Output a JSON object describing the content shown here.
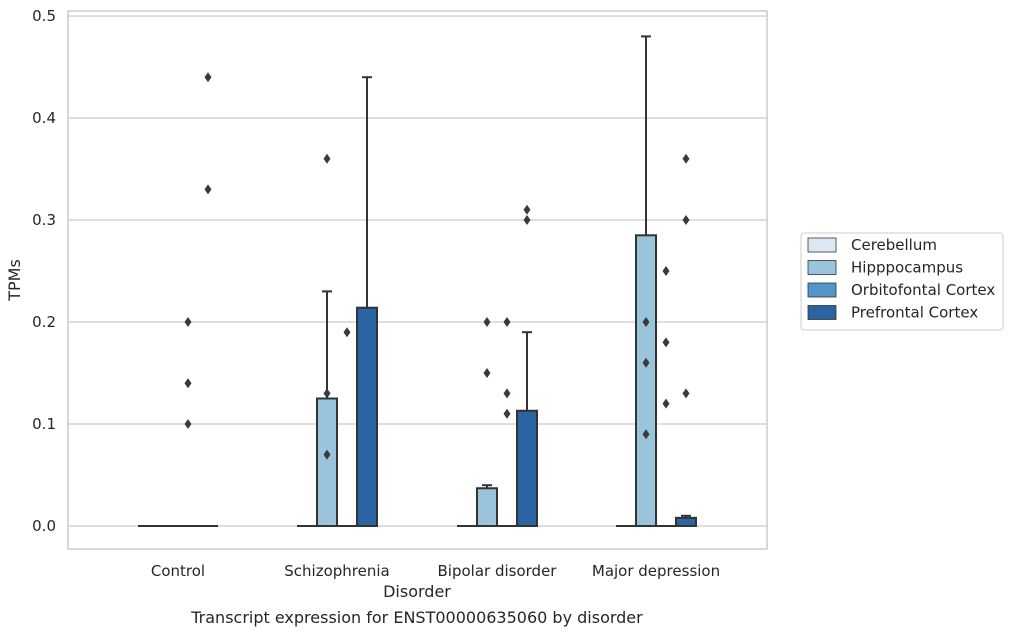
{
  "chart_data": {
    "type": "bar",
    "title": "",
    "caption": "Transcript expression for ENST00000635060 by disorder",
    "xlabel": "Disorder",
    "ylabel": "TPMs",
    "ylim": [
      -0.024,
      0.505
    ],
    "yticks": [
      0.0,
      0.1,
      0.2,
      0.3,
      0.4,
      0.5
    ],
    "ytick_labels": [
      "0.0",
      "0.1",
      "0.2",
      "0.3",
      "0.4",
      "0.5"
    ],
    "grid": true,
    "legend_position": "right",
    "categories": [
      "Control",
      "Schizophrenia",
      "Bipolar disorder",
      "Major depression"
    ],
    "series": [
      {
        "name": "Cerebellum",
        "color": "#dbe8f4",
        "values": [
          0,
          0,
          0,
          0
        ],
        "error_upper": [
          null,
          null,
          null,
          null
        ],
        "outliers": [
          [],
          [],
          [],
          []
        ]
      },
      {
        "name": "Hipppocampus",
        "color": "#9ac3dc",
        "values": [
          0,
          0.125,
          0.037,
          0.285
        ],
        "error_upper": [
          null,
          0.23,
          0.04,
          0.48
        ],
        "outliers": [
          [],
          [
            0.07,
            0.13,
            0.36
          ],
          [
            0.15,
            0.2
          ],
          [
            0.09,
            0.16,
            0.2
          ]
        ]
      },
      {
        "name": "Orbitofontal Cortex",
        "color": "#5396c8",
        "values": [
          0,
          0,
          0,
          0
        ],
        "error_upper": [
          null,
          null,
          null,
          null
        ],
        "outliers": [
          [
            0.1,
            0.14,
            0.2
          ],
          [
            0.19
          ],
          [
            0.11,
            0.13,
            0.2
          ],
          [
            0.12,
            0.18,
            0.25
          ]
        ]
      },
      {
        "name": "Prefrontal Cortex",
        "color": "#2a64a2",
        "values": [
          0,
          0.214,
          0.113,
          0.008
        ],
        "error_upper": [
          null,
          0.44,
          0.19,
          0.01
        ],
        "outliers": [
          [
            0.33,
            0.44
          ],
          [],
          [
            0.3,
            0.31
          ],
          [
            0.13,
            0.3,
            0.36
          ]
        ]
      }
    ]
  }
}
